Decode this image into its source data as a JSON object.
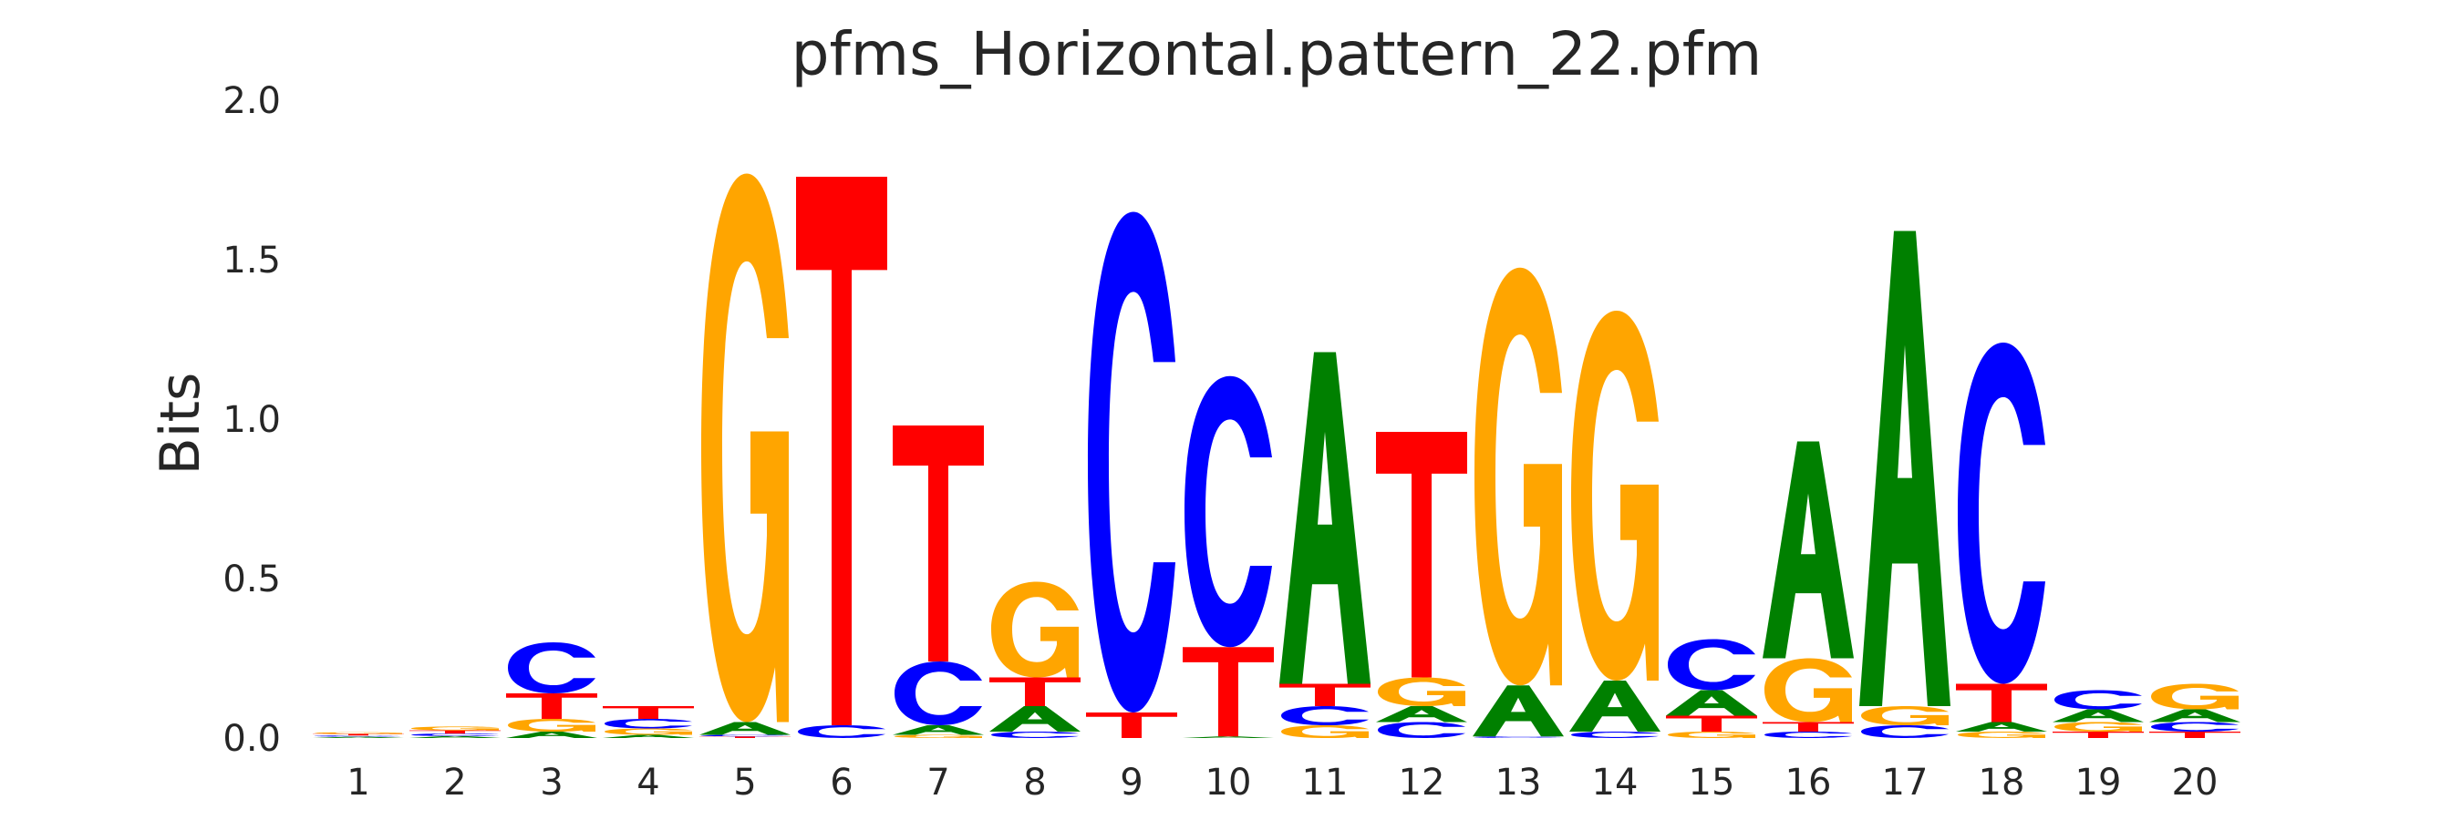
{
  "chart_data": {
    "type": "sequence-logo",
    "title": "pfms_Horizontal.pattern_22.pfm",
    "xlabel": "",
    "ylabel": "Bits",
    "ylim": [
      0,
      2.0
    ],
    "yticks": [
      "0.0",
      "0.5",
      "1.0",
      "1.5",
      "2.0"
    ],
    "categories": [
      "1",
      "2",
      "3",
      "4",
      "5",
      "6",
      "7",
      "8",
      "9",
      "10",
      "11",
      "12",
      "13",
      "14",
      "15",
      "16",
      "17",
      "18",
      "19",
      "20"
    ],
    "grid": false,
    "colors": {
      "A": "#008000",
      "C": "#0000ff",
      "G": "#ffa500",
      "T": "#ff0000"
    },
    "positions": [
      {
        "pos": "1",
        "letters": [
          {
            "base": "A",
            "bits": 0.004
          },
          {
            "base": "C",
            "bits": 0.004
          },
          {
            "base": "T",
            "bits": 0.005
          },
          {
            "base": "G",
            "bits": 0.005
          }
        ]
      },
      {
        "pos": "2",
        "letters": [
          {
            "base": "A",
            "bits": 0.006
          },
          {
            "base": "C",
            "bits": 0.008
          },
          {
            "base": "T",
            "bits": 0.01
          },
          {
            "base": "G",
            "bits": 0.012
          }
        ]
      },
      {
        "pos": "3",
        "letters": [
          {
            "base": "A",
            "bits": 0.02
          },
          {
            "base": "G",
            "bits": 0.04
          },
          {
            "base": "T",
            "bits": 0.08
          },
          {
            "base": "C",
            "bits": 0.16
          }
        ]
      },
      {
        "pos": "4",
        "letters": [
          {
            "base": "A",
            "bits": 0.01
          },
          {
            "base": "G",
            "bits": 0.02
          },
          {
            "base": "C",
            "bits": 0.03
          },
          {
            "base": "T",
            "bits": 0.04
          }
        ]
      },
      {
        "pos": "5",
        "letters": [
          {
            "base": "T",
            "bits": 0.005
          },
          {
            "base": "C",
            "bits": 0.005
          },
          {
            "base": "A",
            "bits": 0.04
          },
          {
            "base": "G",
            "bits": 1.72
          }
        ]
      },
      {
        "pos": "6",
        "letters": [
          {
            "base": "C",
            "bits": 0.04
          },
          {
            "base": "T",
            "bits": 1.72
          }
        ]
      },
      {
        "pos": "7",
        "letters": [
          {
            "base": "G",
            "bits": 0.01
          },
          {
            "base": "A",
            "bits": 0.03
          },
          {
            "base": "C",
            "bits": 0.2
          },
          {
            "base": "T",
            "bits": 0.74
          }
        ]
      },
      {
        "pos": "8",
        "letters": [
          {
            "base": "C",
            "bits": 0.02
          },
          {
            "base": "A",
            "bits": 0.08
          },
          {
            "base": "T",
            "bits": 0.09
          },
          {
            "base": "G",
            "bits": 0.3
          }
        ]
      },
      {
        "pos": "9",
        "letters": [
          {
            "base": "T",
            "bits": 0.08
          },
          {
            "base": "C",
            "bits": 1.57
          }
        ]
      },
      {
        "pos": "10",
        "letters": [
          {
            "base": "A",
            "bits": 0.005
          },
          {
            "base": "T",
            "bits": 0.28
          },
          {
            "base": "C",
            "bits": 0.85
          }
        ]
      },
      {
        "pos": "11",
        "letters": [
          {
            "base": "G",
            "bits": 0.04
          },
          {
            "base": "C",
            "bits": 0.06
          },
          {
            "base": "T",
            "bits": 0.07
          },
          {
            "base": "A",
            "bits": 1.04
          }
        ]
      },
      {
        "pos": "12",
        "letters": [
          {
            "base": "C",
            "bits": 0.05
          },
          {
            "base": "A",
            "bits": 0.05
          },
          {
            "base": "G",
            "bits": 0.09
          },
          {
            "base": "T",
            "bits": 0.77
          }
        ]
      },
      {
        "pos": "13",
        "letters": [
          {
            "base": "C",
            "bits": 0.005
          },
          {
            "base": "A",
            "bits": 0.16
          },
          {
            "base": "G",
            "bits": 1.31
          }
        ]
      },
      {
        "pos": "14",
        "letters": [
          {
            "base": "C",
            "bits": 0.02
          },
          {
            "base": "A",
            "bits": 0.16
          },
          {
            "base": "G",
            "bits": 1.16
          }
        ]
      },
      {
        "pos": "15",
        "letters": [
          {
            "base": "G",
            "bits": 0.02
          },
          {
            "base": "T",
            "bits": 0.05
          },
          {
            "base": "A",
            "bits": 0.08
          },
          {
            "base": "C",
            "bits": 0.16
          }
        ]
      },
      {
        "pos": "16",
        "letters": [
          {
            "base": "C",
            "bits": 0.02
          },
          {
            "base": "T",
            "bits": 0.03
          },
          {
            "base": "G",
            "bits": 0.2
          },
          {
            "base": "A",
            "bits": 0.68
          }
        ]
      },
      {
        "pos": "17",
        "letters": [
          {
            "base": "C",
            "bits": 0.04
          },
          {
            "base": "G",
            "bits": 0.06
          },
          {
            "base": "A",
            "bits": 1.49
          }
        ]
      },
      {
        "pos": "18",
        "letters": [
          {
            "base": "G",
            "bits": 0.02
          },
          {
            "base": "A",
            "bits": 0.03
          },
          {
            "base": "T",
            "bits": 0.12
          },
          {
            "base": "C",
            "bits": 1.07
          }
        ]
      },
      {
        "pos": "19",
        "letters": [
          {
            "base": "T",
            "bits": 0.02
          },
          {
            "base": "G",
            "bits": 0.03
          },
          {
            "base": "A",
            "bits": 0.04
          },
          {
            "base": "C",
            "bits": 0.06
          }
        ]
      },
      {
        "pos": "20",
        "letters": [
          {
            "base": "T",
            "bits": 0.02
          },
          {
            "base": "C",
            "bits": 0.03
          },
          {
            "base": "A",
            "bits": 0.04
          },
          {
            "base": "G",
            "bits": 0.08
          }
        ]
      }
    ]
  }
}
